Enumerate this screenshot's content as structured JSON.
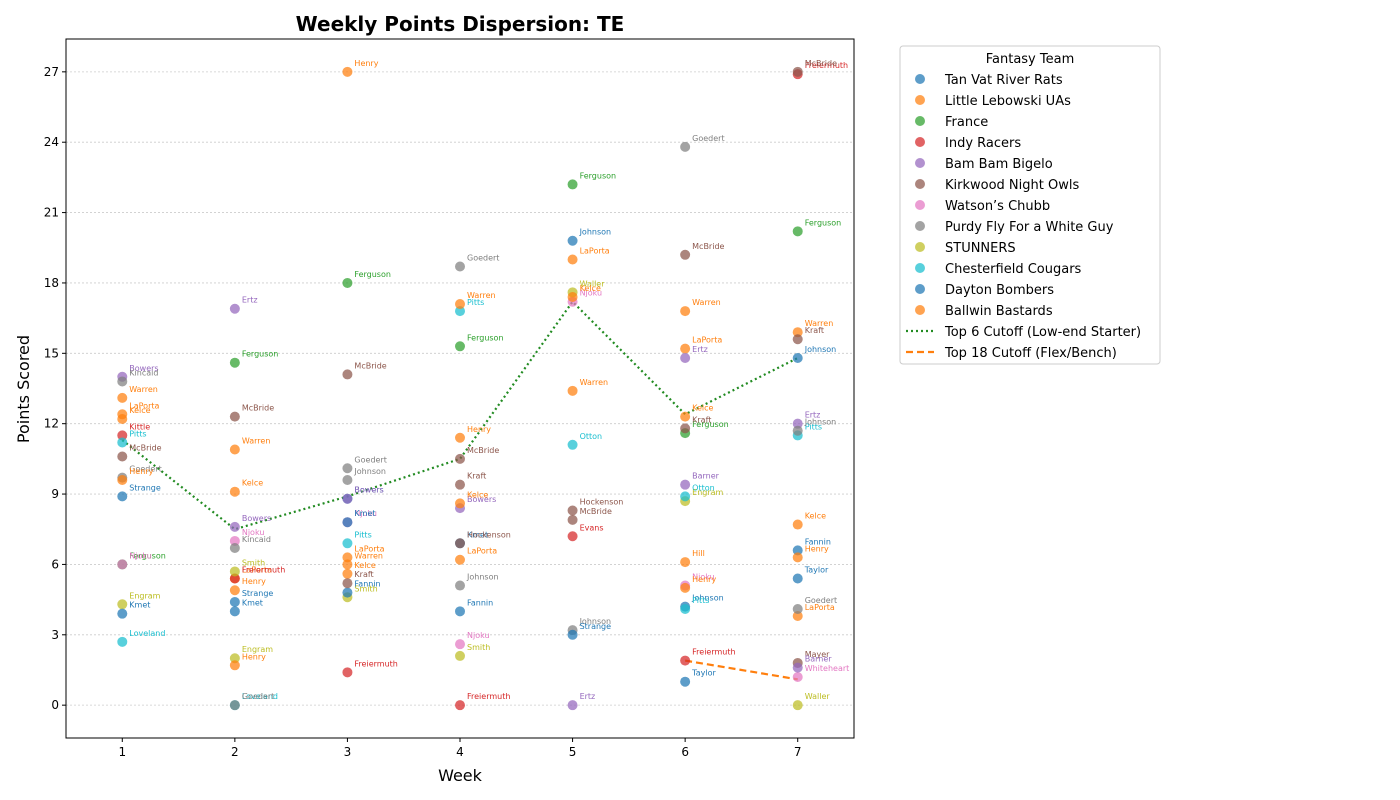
{
  "chart_data": {
    "type": "scatter",
    "title": "Weekly Points Dispersion: TE",
    "xlabel": "Week",
    "ylabel": "Points Scored",
    "xlim": [
      0.5,
      7.5
    ],
    "ylim": [
      -1.4,
      28.4
    ],
    "xticks": [
      1,
      2,
      3,
      4,
      5,
      6,
      7
    ],
    "yticks": [
      0,
      3,
      6,
      9,
      12,
      15,
      18,
      21,
      24,
      27
    ],
    "grid": "y-dotted",
    "legend": {
      "title": "Fantasy Team",
      "placement": "outside-right"
    },
    "series": [
      {
        "name": "Tan Vat River Rats",
        "color": "#1f77b4",
        "points": [
          {
            "x": 1,
            "y": 8.9,
            "label": "Strange"
          },
          {
            "x": 2,
            "y": 4.4,
            "label": "Strange"
          },
          {
            "x": 3,
            "y": 8.8,
            "label": "Bowers"
          },
          {
            "x": 4,
            "y": 6.9,
            "label": "Kmet"
          },
          {
            "x": 5,
            "y": 19.8,
            "label": "Johnson"
          },
          {
            "x": 6,
            "y": 4.2,
            "label": "Johnson"
          },
          {
            "x": 7,
            "y": 14.8,
            "label": "Johnson"
          }
        ]
      },
      {
        "name": "Little Lebowski UAs",
        "color": "#ff7f0e",
        "points": [
          {
            "x": 1,
            "y": 12.4,
            "label": "LaPorta"
          },
          {
            "x": 2,
            "y": 5.4,
            "label": "LaPorta"
          },
          {
            "x": 3,
            "y": 6.3,
            "label": "LaPorta"
          },
          {
            "x": 4,
            "y": 6.2,
            "label": "LaPorta"
          },
          {
            "x": 5,
            "y": 19.0,
            "label": "LaPorta"
          },
          {
            "x": 6,
            "y": 15.2,
            "label": "LaPorta"
          },
          {
            "x": 7,
            "y": 3.8,
            "label": "LaPorta"
          }
        ]
      },
      {
        "name": "France",
        "color": "#2ca02c",
        "points": [
          {
            "x": 1,
            "y": 6.0,
            "label": "Ferguson"
          },
          {
            "x": 2,
            "y": 14.6,
            "label": "Ferguson"
          },
          {
            "x": 3,
            "y": 18.0,
            "label": "Ferguson"
          },
          {
            "x": 4,
            "y": 15.3,
            "label": "Ferguson"
          },
          {
            "x": 5,
            "y": 22.2,
            "label": "Ferguson"
          },
          {
            "x": 6,
            "y": 11.6,
            "label": "Ferguson"
          },
          {
            "x": 7,
            "y": 20.2,
            "label": "Ferguson"
          }
        ]
      },
      {
        "name": "Indy Racers",
        "color": "#d62728",
        "points": [
          {
            "x": 1,
            "y": 11.5,
            "label": "Kittle"
          },
          {
            "x": 2,
            "y": 5.4,
            "label": "Freiermuth"
          },
          {
            "x": 3,
            "y": 1.4,
            "label": "Freiermuth"
          },
          {
            "x": 4,
            "y": 0.0,
            "label": "Freiermuth"
          },
          {
            "x": 5,
            "y": 7.2,
            "label": "Evans"
          },
          {
            "x": 6,
            "y": 1.9,
            "label": "Freiermuth"
          },
          {
            "x": 7,
            "y": 26.9,
            "label": "Freiermuth"
          }
        ]
      },
      {
        "name": "Bam Bam Bigelo",
        "color": "#9467bd",
        "points": [
          {
            "x": 1,
            "y": 14.0,
            "label": "Bowers"
          },
          {
            "x": 2,
            "y": 16.9,
            "label": "Ertz"
          },
          {
            "x": 3,
            "y": 8.8,
            "label": "Bowers"
          },
          {
            "x": 4,
            "y": 8.4,
            "label": "Bowers"
          },
          {
            "x": 5,
            "y": 0.0,
            "label": "Ertz"
          },
          {
            "x": 6,
            "y": 14.8,
            "label": "Ertz"
          },
          {
            "x": 7,
            "y": 12.0,
            "label": "Ertz"
          }
        ]
      },
      {
        "name": "Kirkwood Night Owls",
        "color": "#8c564b",
        "points": [
          {
            "x": 1,
            "y": 10.6,
            "label": "McBride"
          },
          {
            "x": 2,
            "y": 12.3,
            "label": "McBride"
          },
          {
            "x": 3,
            "y": 14.1,
            "label": "McBride"
          },
          {
            "x": 4,
            "y": 10.5,
            "label": "McBride"
          },
          {
            "x": 5,
            "y": 8.3,
            "label": "Hockenson"
          },
          {
            "x": 6,
            "y": 19.2,
            "label": "McBride"
          },
          {
            "x": 7,
            "y": 27.0,
            "label": "McBride"
          }
        ]
      },
      {
        "name": "Watson’s Chubb",
        "color": "#e377c2",
        "points": [
          {
            "x": 1,
            "y": 6.0,
            "label": "Njoku"
          },
          {
            "x": 2,
            "y": 7.0,
            "label": "Njoku"
          },
          {
            "x": 3,
            "y": 7.8,
            "label": "Njoku"
          },
          {
            "x": 4,
            "y": 2.6,
            "label": "Njoku"
          },
          {
            "x": 5,
            "y": 17.2,
            "label": "Njoku"
          },
          {
            "x": 6,
            "y": 5.1,
            "label": "Njoku"
          },
          {
            "x": 7,
            "y": 1.2,
            "label": "Whiteheart"
          }
        ]
      },
      {
        "name": "Purdy Fly For a White Guy",
        "color": "#7f7f7f",
        "points": [
          {
            "x": 1,
            "y": 13.8,
            "label": "Kincaid"
          },
          {
            "x": 2,
            "y": 6.7,
            "label": "Kincaid"
          },
          {
            "x": 3,
            "y": 10.1,
            "label": "Goedert"
          },
          {
            "x": 4,
            "y": 18.7,
            "label": "Goedert"
          },
          {
            "x": 5,
            "y": 3.2,
            "label": "Johnson"
          },
          {
            "x": 6,
            "y": 23.8,
            "label": "Goedert"
          },
          {
            "x": 7,
            "y": 4.1,
            "label": "Goedert"
          }
        ]
      },
      {
        "name": "STUNNERS",
        "color": "#bcbd22",
        "points": [
          {
            "x": 1,
            "y": 4.3,
            "label": "Engram"
          },
          {
            "x": 2,
            "y": 2.0,
            "label": "Engram"
          },
          {
            "x": 3,
            "y": 4.6,
            "label": "Smith"
          },
          {
            "x": 4,
            "y": 2.1,
            "label": "Smith"
          },
          {
            "x": 5,
            "y": 17.6,
            "label": "Waller"
          },
          {
            "x": 6,
            "y": 8.7,
            "label": "Engram"
          },
          {
            "x": 7,
            "y": 0.0,
            "label": "Waller"
          }
        ]
      },
      {
        "name": "Chesterfield Cougars",
        "color": "#17becf",
        "points": [
          {
            "x": 1,
            "y": 2.7,
            "label": "Loveland"
          },
          {
            "x": 2,
            "y": 0.0,
            "label": "Loveland"
          },
          {
            "x": 3,
            "y": 6.9,
            "label": "Pitts"
          },
          {
            "x": 4,
            "y": 16.8,
            "label": "Pitts"
          },
          {
            "x": 5,
            "y": 11.1,
            "label": "Otton"
          },
          {
            "x": 6,
            "y": 4.1,
            "label": "Pitts"
          },
          {
            "x": 7,
            "y": 11.5,
            "label": "Pitts"
          }
        ]
      },
      {
        "name": "Dayton Bombers",
        "color": "#1f77b4",
        "points": [
          {
            "x": 1,
            "y": 3.9,
            "label": "Kmet"
          },
          {
            "x": 2,
            "y": 4.0,
            "label": "Kmet"
          },
          {
            "x": 3,
            "y": 4.8,
            "label": "Fannin"
          },
          {
            "x": 4,
            "y": 4.0,
            "label": "Fannin"
          },
          {
            "x": 5,
            "y": 3.0,
            "label": "Strange"
          },
          {
            "x": 6,
            "y": 1.0,
            "label": "Taylor"
          },
          {
            "x": 7,
            "y": 6.6,
            "label": "Fannin"
          }
        ]
      },
      {
        "name": "Ballwin Bastards",
        "color": "#ff7f0e",
        "points": [
          {
            "x": 1,
            "y": 13.1,
            "label": "Warren"
          },
          {
            "x": 2,
            "y": 10.9,
            "label": "Warren"
          },
          {
            "x": 3,
            "y": 27.0,
            "label": "Henry"
          },
          {
            "x": 4,
            "y": 17.1,
            "label": "Warren"
          },
          {
            "x": 5,
            "y": 13.4,
            "label": "Warren"
          },
          {
            "x": 6,
            "y": 16.8,
            "label": "Warren"
          },
          {
            "x": 7,
            "y": 15.9,
            "label": "Warren"
          }
        ]
      }
    ],
    "extra_points": [
      {
        "x": 1,
        "y": 11.2,
        "label": "Pitts",
        "color": "#17becf"
      },
      {
        "x": 1,
        "y": 9.7,
        "label": "Goedert",
        "color": "#7f7f7f"
      },
      {
        "x": 1,
        "y": 9.6,
        "label": "Henry",
        "color": "#ff7f0e"
      },
      {
        "x": 1,
        "y": 12.2,
        "label": "Kelce",
        "color": "#ff7f0e"
      },
      {
        "x": 2,
        "y": 9.1,
        "label": "Kelce",
        "color": "#ff7f0e"
      },
      {
        "x": 2,
        "y": 7.6,
        "label": "Bowers",
        "color": "#9467bd"
      },
      {
        "x": 2,
        "y": 5.7,
        "label": "Smith",
        "color": "#bcbd22"
      },
      {
        "x": 2,
        "y": 4.9,
        "label": "Henry",
        "color": "#ff7f0e"
      },
      {
        "x": 2,
        "y": 1.7,
        "label": "Henry",
        "color": "#ff7f0e"
      },
      {
        "x": 2,
        "y": 0.0,
        "label": "Goedert",
        "color": "#7f7f7f"
      },
      {
        "x": 3,
        "y": 9.6,
        "label": "Johnson",
        "color": "#7f7f7f"
      },
      {
        "x": 3,
        "y": 7.8,
        "label": "Kmet",
        "color": "#1f77b4"
      },
      {
        "x": 3,
        "y": 6.0,
        "label": "Warren",
        "color": "#ff7f0e"
      },
      {
        "x": 3,
        "y": 5.6,
        "label": "Kelce",
        "color": "#ff7f0e"
      },
      {
        "x": 3,
        "y": 5.2,
        "label": "Kraft",
        "color": "#8c564b"
      },
      {
        "x": 4,
        "y": 11.4,
        "label": "Henry",
        "color": "#ff7f0e"
      },
      {
        "x": 4,
        "y": 9.4,
        "label": "Kraft",
        "color": "#8c564b"
      },
      {
        "x": 4,
        "y": 8.6,
        "label": "Kelce",
        "color": "#ff7f0e"
      },
      {
        "x": 4,
        "y": 6.9,
        "label": "Hockenson",
        "color": "#8c564b"
      },
      {
        "x": 4,
        "y": 5.1,
        "label": "Johnson",
        "color": "#7f7f7f"
      },
      {
        "x": 5,
        "y": 17.4,
        "label": "Kelce",
        "color": "#ff7f0e"
      },
      {
        "x": 5,
        "y": 7.9,
        "label": "McBride",
        "color": "#8c564b"
      },
      {
        "x": 6,
        "y": 12.3,
        "label": "Kelce",
        "color": "#ff7f0e"
      },
      {
        "x": 6,
        "y": 11.8,
        "label": "Kraft",
        "color": "#8c564b"
      },
      {
        "x": 6,
        "y": 9.4,
        "label": "Barner",
        "color": "#9467bd"
      },
      {
        "x": 6,
        "y": 8.9,
        "label": "Otton",
        "color": "#17becf"
      },
      {
        "x": 6,
        "y": 6.1,
        "label": "Hill",
        "color": "#ff7f0e"
      },
      {
        "x": 6,
        "y": 5.0,
        "label": "Henry",
        "color": "#ff7f0e"
      },
      {
        "x": 7,
        "y": 15.6,
        "label": "Kraft",
        "color": "#8c564b"
      },
      {
        "x": 7,
        "y": 11.7,
        "label": "Johnson",
        "color": "#7f7f7f"
      },
      {
        "x": 7,
        "y": 7.7,
        "label": "Kelce",
        "color": "#ff7f0e"
      },
      {
        "x": 7,
        "y": 6.3,
        "label": "Henry",
        "color": "#ff7f0e"
      },
      {
        "x": 7,
        "y": 5.4,
        "label": "Taylor",
        "color": "#1f77b4"
      },
      {
        "x": 7,
        "y": 1.8,
        "label": "Mayer",
        "color": "#8c564b"
      },
      {
        "x": 7,
        "y": 1.6,
        "label": "Barner",
        "color": "#9467bd"
      }
    ],
    "lines": [
      {
        "name": "Top 6 Cutoff (Low-end Starter)",
        "color": "#228b22",
        "style": "dotted",
        "x": [
          1,
          2,
          3,
          4,
          5,
          6,
          7
        ],
        "y": [
          11.3,
          7.5,
          8.9,
          10.5,
          17.2,
          12.4,
          14.8
        ]
      },
      {
        "name": "Top 18 Cutoff (Flex/Bench)",
        "color": "#ff7f0e",
        "style": "dashed",
        "x": [
          6,
          7
        ],
        "y": [
          1.9,
          1.1
        ]
      }
    ]
  }
}
